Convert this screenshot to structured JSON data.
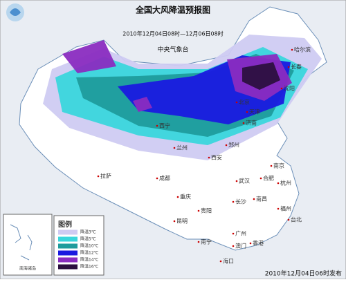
{
  "header": {
    "title": "全国大风降温预报图",
    "period": "2010年12月04日08时—12月06日08时",
    "issuer": "中央气象台"
  },
  "legend": {
    "title": "图例",
    "items": [
      {
        "label": "降温3℃",
        "color": "#cfcbf2"
      },
      {
        "label": "降温5℃",
        "color": "#3ad6dc"
      },
      {
        "label": "降温10℃",
        "color": "#1f9c9c"
      },
      {
        "label": "降温12℃",
        "color": "#1a1ae0"
      },
      {
        "label": "降温14℃",
        "color": "#8a2cc0"
      },
      {
        "label": "降温16℃",
        "color": "#2c1040"
      }
    ]
  },
  "cities": [
    "哈尔滨",
    "长春",
    "沈阳",
    "北京",
    "天津",
    "西宁",
    "兰州",
    "西安",
    "郑州",
    "济南",
    "拉萨",
    "成都",
    "重庆",
    "武汉",
    "合肥",
    "南京",
    "杭州",
    "长沙",
    "南昌",
    "福州",
    "贵阳",
    "昆明",
    "南宁",
    "广州",
    "香港",
    "澳门",
    "台北",
    "海口"
  ],
  "inset": {
    "label": "南海诸岛"
  },
  "footer": "2010年12月04日06时发布"
}
